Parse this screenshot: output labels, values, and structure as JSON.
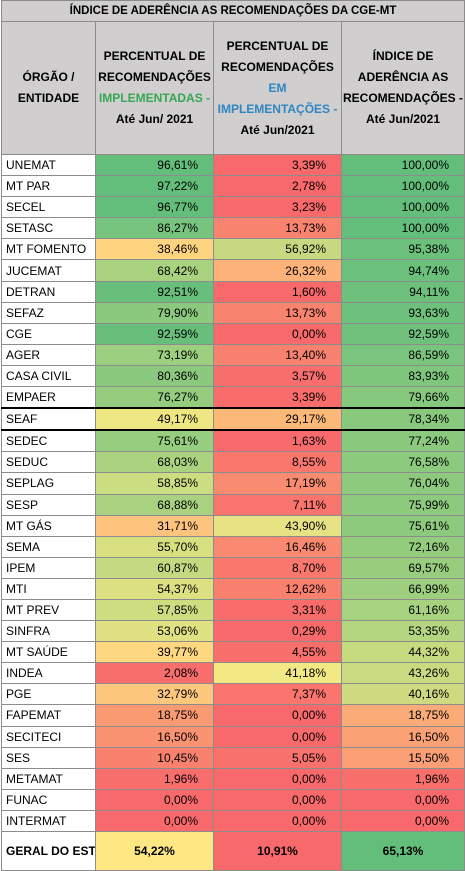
{
  "title": "ÍNDICE DE ADERÊNCIA AS RECOMENDAÇÕES DA CGE-MT",
  "headers": {
    "col1": "ÓRGÃO / ENTIDADE",
    "col2_pre": "PERCENTUAL DE RECOMENDAÇÕES",
    "col2_hl": "IMPLEMENTADAS -",
    "col2_post": "Até Jun/ 2021",
    "col3_pre": "PERCENTUAL DE RECOMENDAÇÕES",
    "col3_hl": "EM IMPLEMENTAÇÕES -",
    "col3_post": "Até Jun/2021",
    "col4": "ÍNDICE DE ADERÊNCIA AS RECOMENDAÇÕES - Até Jun/2021"
  },
  "rows": [
    {
      "org": "UNEMAT",
      "impl": "96,61%",
      "em": "3,39%",
      "idx": "100,00%",
      "c1": "#63be7b",
      "c2": "#f8696b",
      "c3": "#63be7b"
    },
    {
      "org": "MT PAR",
      "impl": "97,22%",
      "em": "2,78%",
      "idx": "100,00%",
      "c1": "#63be7b",
      "c2": "#f8696b",
      "c3": "#63be7b"
    },
    {
      "org": "SECEL",
      "impl": "96,77%",
      "em": "3,23%",
      "idx": "100,00%",
      "c1": "#63be7b",
      "c2": "#f8696b",
      "c3": "#63be7b"
    },
    {
      "org": "SETASC",
      "impl": "86,27%",
      "em": "13,73%",
      "idx": "100,00%",
      "c1": "#76c47d",
      "c2": "#f8836f",
      "c3": "#63be7b"
    },
    {
      "org": "MT FOMENTO",
      "impl": "38,46%",
      "em": "56,92%",
      "idx": "95,38%",
      "c1": "#fed480",
      "c2": "#c6d980",
      "c3": "#6bc07c"
    },
    {
      "org": "JUCEMAT",
      "impl": "68,42%",
      "em": "26,32%",
      "idx": "94,74%",
      "c1": "#a9d27f",
      "c2": "#fcb279",
      "c3": "#6bc07c"
    },
    {
      "org": "DETRAN",
      "impl": "92,51%",
      "em": "1,60%",
      "idx": "94,11%",
      "c1": "#68bf7b",
      "c2": "#f8696b",
      "c3": "#6cc07c"
    },
    {
      "org": "SEFAZ",
      "impl": "79,90%",
      "em": "13,73%",
      "idx": "93,63%",
      "c1": "#8bc97e",
      "c2": "#f8836f",
      "c3": "#6dc17c"
    },
    {
      "org": "CGE",
      "impl": "92,59%",
      "em": "0,00%",
      "idx": "92,59%",
      "c1": "#68bf7b",
      "c2": "#f8696b",
      "c3": "#6fc17c"
    },
    {
      "org": "AGER",
      "impl": "73,19%",
      "em": "13,40%",
      "idx": "86,59%",
      "c1": "#9ccf7f",
      "c2": "#f8826f",
      "c3": "#7ac57d"
    },
    {
      "org": "CASA CIVIL",
      "impl": "80,36%",
      "em": "3,57%",
      "idx": "83,93%",
      "c1": "#8ac97e",
      "c2": "#f86e6c",
      "c3": "#7fc67d"
    },
    {
      "org": "EMPAER",
      "impl": "76,27%",
      "em": "3,39%",
      "idx": "79,66%",
      "c1": "#95cc7e",
      "c2": "#f86d6b",
      "c3": "#86c87e"
    },
    {
      "org": "SEAF",
      "impl": "49,17%",
      "em": "29,17%",
      "idx": "78,34%",
      "c1": "#ede683",
      "c2": "#fcb879",
      "c3": "#89c97e",
      "thick": true
    },
    {
      "org": "SEDEC",
      "impl": "75,61%",
      "em": "1,63%",
      "idx": "77,24%",
      "c1": "#97cd7e",
      "c2": "#f86a6b",
      "c3": "#8bca7e",
      "thick": true
    },
    {
      "org": "SEDUC",
      "impl": "68,03%",
      "em": "8,55%",
      "idx": "76,58%",
      "c1": "#abd27f",
      "c2": "#f9776d",
      "c3": "#8cca7e"
    },
    {
      "org": "SEPLAG",
      "impl": "58,85%",
      "em": "17,19%",
      "idx": "76,04%",
      "c1": "#cbdc81",
      "c2": "#f98b70",
      "c3": "#8dca7e"
    },
    {
      "org": "SESP",
      "impl": "68,88%",
      "em": "7,11%",
      "idx": "75,99%",
      "c1": "#a8d27f",
      "c2": "#f9746d",
      "c3": "#8dca7e"
    },
    {
      "org": "MT GÁS",
      "impl": "31,71%",
      "em": "43,90%",
      "idx": "75,61%",
      "c1": "#fdc47d",
      "c2": "#e7e283",
      "c3": "#8eca7e"
    },
    {
      "org": "SEMA",
      "impl": "55,70%",
      "em": "16,46%",
      "idx": "72,16%",
      "c1": "#d8df81",
      "c2": "#f98970",
      "c3": "#94cc7e"
    },
    {
      "org": "IPEM",
      "impl": "60,87%",
      "em": "8,70%",
      "idx": "69,57%",
      "c1": "#c5da80",
      "c2": "#f9776d",
      "c3": "#98cd7e"
    },
    {
      "org": "MTI",
      "impl": "54,37%",
      "em": "12,62%",
      "idx": "66,99%",
      "c1": "#dce081",
      "c2": "#f9806e",
      "c3": "#9dcf7f"
    },
    {
      "org": "MT PREV",
      "impl": "57,85%",
      "em": "3,31%",
      "idx": "61,16%",
      "c1": "#cfdd81",
      "c2": "#f86d6b",
      "c3": "#a7d27f"
    },
    {
      "org": "SINFRA",
      "impl": "53,06%",
      "em": "0,29%",
      "idx": "53,35%",
      "c1": "#e0e182",
      "c2": "#f8696b",
      "c3": "#b5d680"
    },
    {
      "org": "MT SAÚDE",
      "impl": "39,77%",
      "em": "4,55%",
      "idx": "44,32%",
      "c1": "#fed781",
      "c2": "#f86f6c",
      "c3": "#c6da80"
    },
    {
      "org": "INDEA",
      "impl": "2,08%",
      "em": "41,18%",
      "idx": "43,26%",
      "c1": "#f86e6c",
      "c2": "#f2e884",
      "c3": "#c8db81"
    },
    {
      "org": "PGE",
      "impl": "32,79%",
      "em": "7,37%",
      "idx": "40,16%",
      "c1": "#fdc77e",
      "c2": "#f9756d",
      "c3": "#ced980"
    },
    {
      "org": "FAPEMAT",
      "impl": "18,75%",
      "em": "0,00%",
      "idx": "18,75%",
      "c1": "#fa9a73",
      "c2": "#f8696b",
      "c3": "#fbab77"
    },
    {
      "org": "SECITECI",
      "impl": "16,50%",
      "em": "0,00%",
      "idx": "16,50%",
      "c1": "#fa9372",
      "c2": "#f8696b",
      "c3": "#faa275"
    },
    {
      "org": "SES",
      "impl": "10,45%",
      "em": "5,05%",
      "idx": "15,50%",
      "c1": "#f9826f",
      "c2": "#f8716c",
      "c3": "#fa9f75"
    },
    {
      "org": "METAMAT",
      "impl": "1,96%",
      "em": "0,00%",
      "idx": "1,96%",
      "c1": "#f86e6c",
      "c2": "#f8696b",
      "c3": "#f86f6c"
    },
    {
      "org": "FUNAC",
      "impl": "0,00%",
      "em": "0,00%",
      "idx": "0,00%",
      "c1": "#f8696b",
      "c2": "#f8696b",
      "c3": "#f8696b"
    },
    {
      "org": "INTERMAT",
      "impl": "0,00%",
      "em": "0,00%",
      "idx": "0,00%",
      "c1": "#f8696b",
      "c2": "#f8696b",
      "c3": "#f8696b"
    }
  ],
  "total": {
    "org": "GERAL DO ESTADO",
    "impl": "54,22%",
    "em": "10,91%",
    "idx": "65,13%",
    "c1": "#fde883",
    "c2": "#f8696b",
    "c3": "#63be7b"
  }
}
